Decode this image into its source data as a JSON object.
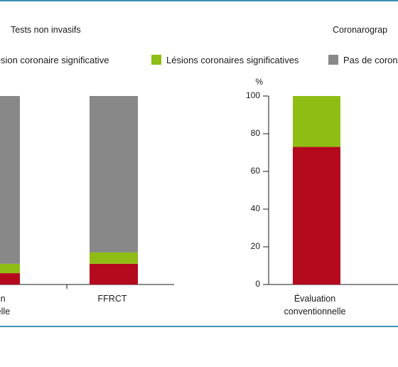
{
  "panels": {
    "left_title": "Tests non invasifs",
    "right_title": "Coronarograp"
  },
  "legend": [
    {
      "label": "e lésion coronaire significative",
      "color": "#b5091e"
    },
    {
      "label": "Lésions coronaires significatives",
      "color": "#8fbd14"
    },
    {
      "label": "Pas de coron",
      "color": "#888889"
    }
  ],
  "chart_data": [
    {
      "type": "bar",
      "stacked": true,
      "categories": [
        "ation\nonnelle",
        "FFRCT"
      ],
      "series": [
        {
          "name": "e lésion coronaire significative",
          "values": [
            6,
            11
          ]
        },
        {
          "name": "Lésions coronaires significatives",
          "values": [
            5,
            6
          ]
        },
        {
          "name": "Pas de coron",
          "values": [
            89,
            83
          ]
        }
      ],
      "ylim": [
        0,
        100
      ]
    },
    {
      "type": "bar",
      "stacked": true,
      "categories": [
        "Évaluation\nconventionnelle"
      ],
      "series": [
        {
          "name": "e lésion coronaire significative",
          "values": [
            73
          ]
        },
        {
          "name": "Lésions coronaires significatives",
          "values": [
            27
          ]
        }
      ],
      "ylabel": "%",
      "yticks": [
        0,
        20,
        40,
        60,
        80,
        100
      ],
      "ylim": [
        0,
        100
      ]
    }
  ]
}
